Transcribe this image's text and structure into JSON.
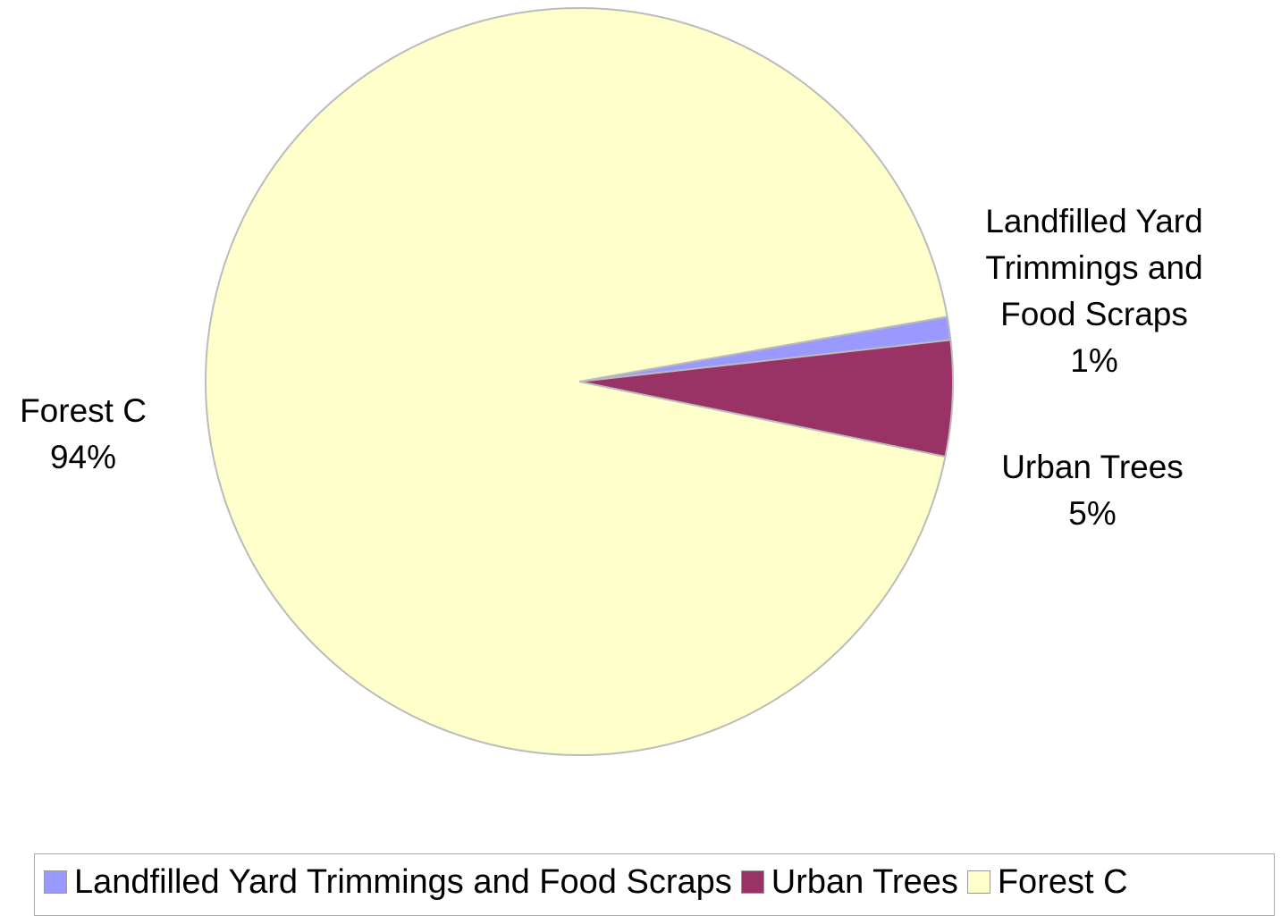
{
  "chart_data": {
    "type": "pie",
    "categories": [
      "Landfilled Yard Trimmings and Food Scraps",
      "Urban Trees",
      "Forest C"
    ],
    "values": [
      1,
      5,
      94
    ],
    "value_labels": [
      "1%",
      "5%",
      "94%"
    ],
    "colors": [
      "#9999ff",
      "#993366",
      "#ffffcc"
    ],
    "legend": "bottom"
  }
}
